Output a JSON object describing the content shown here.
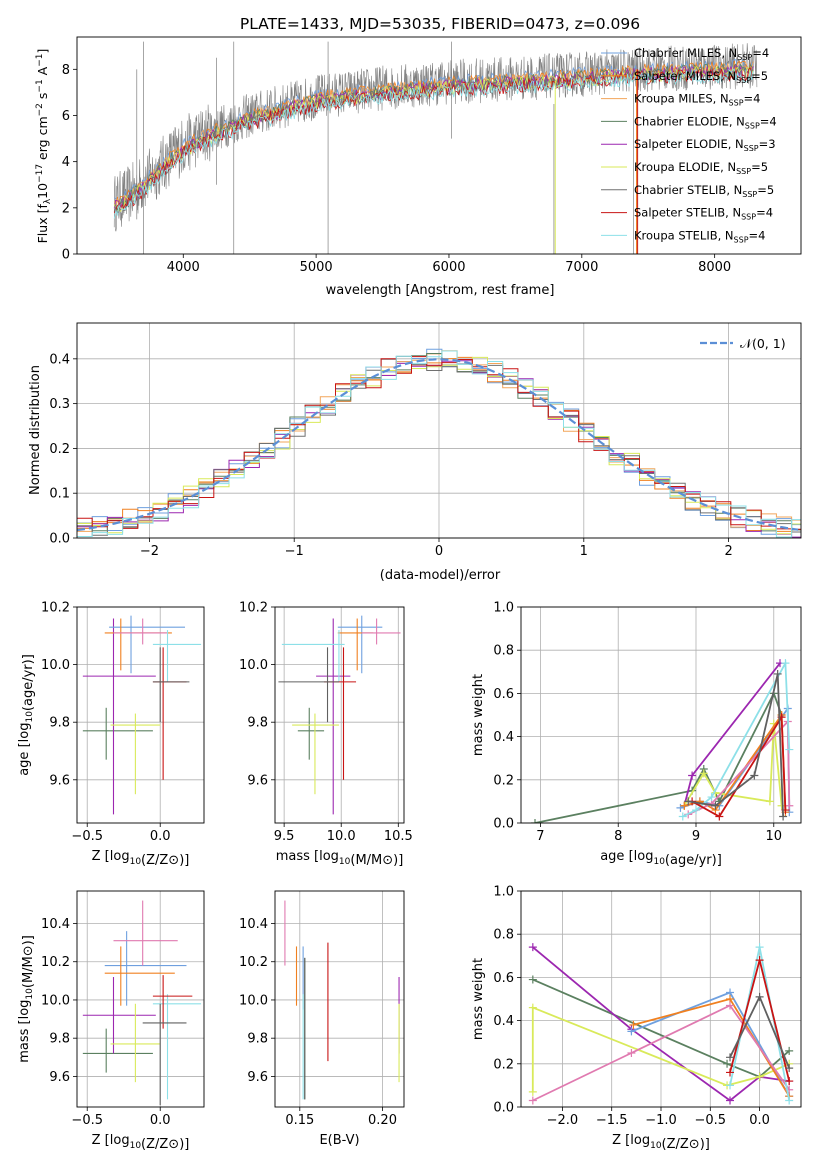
{
  "figure_title": "PLATE=1433, MJD=53035, FIBERID=0473, z=0.096",
  "colors": {
    "models": [
      "#6fa0df",
      "#f08020",
      "#f2a55a",
      "#5b8060",
      "#9c27b0",
      "#d9ea5a",
      "#707070",
      "#c81414",
      "#8de0e8"
    ],
    "age_mass_panels": [
      "#5b8060",
      "#9c27b0",
      "#d9ea5a",
      "#6fa0df",
      "#f08020",
      "#e07ab0",
      "#8de0e8",
      "#c81414",
      "#606060"
    ],
    "gaussian": "#5b8fd6",
    "observed": "#808080"
  },
  "legend_spectrum": [
    {
      "label": "Chabrier MILES, N",
      "sub": "SSP",
      "suffix": "=4"
    },
    {
      "label": "Salpeter MILES, N",
      "sub": "SSP",
      "suffix": "=5"
    },
    {
      "label": "Kroupa MILES, N",
      "sub": "SSP",
      "suffix": "=4"
    },
    {
      "label": "Chabrier ELODIE, N",
      "sub": "SSP",
      "suffix": "=4"
    },
    {
      "label": "Salpeter ELODIE, N",
      "sub": "SSP",
      "suffix": "=3"
    },
    {
      "label": "Kroupa ELODIE, N",
      "sub": "SSP",
      "suffix": "=5"
    },
    {
      "label": "Chabrier STELIB, N",
      "sub": "SSP",
      "suffix": "=5"
    },
    {
      "label": "Salpeter STELIB, N",
      "sub": "SSP",
      "suffix": "=4"
    },
    {
      "label": "Kroupa STELIB, N",
      "sub": "SSP",
      "suffix": "=4"
    }
  ],
  "legend_residual": {
    "label": "𝒩(0, 1)"
  },
  "chart_data": [
    {
      "id": "spectrum",
      "type": "line",
      "xlabel": "wavelength [Angstrom, rest frame]",
      "ylabel_parts": [
        "Flux [f",
        "λ",
        "10",
        "−17",
        " erg cm",
        "−2",
        " s",
        "−1",
        " A",
        "−1",
        "]"
      ],
      "xlim": [
        3200,
        8650
      ],
      "ylim": [
        0,
        9.4
      ],
      "xticks": [
        4000,
        5000,
        6000,
        7000,
        8000
      ],
      "yticks": [
        0,
        2,
        4,
        6,
        8
      ],
      "continuum": [
        [
          3480,
          2.2
        ],
        [
          3600,
          2.6
        ],
        [
          3700,
          3.1
        ],
        [
          3800,
          3.6
        ],
        [
          3900,
          4.2
        ],
        [
          4000,
          4.7
        ],
        [
          4200,
          5.3
        ],
        [
          4500,
          6.0
        ],
        [
          5000,
          6.8
        ],
        [
          5500,
          7.2
        ],
        [
          6000,
          7.45
        ],
        [
          6500,
          7.6
        ],
        [
          7000,
          7.8
        ],
        [
          7500,
          8.0
        ],
        [
          8000,
          8.1
        ],
        [
          8300,
          8.15
        ]
      ]
    },
    {
      "id": "residuals",
      "type": "line",
      "xlabel": "(data-model)/error",
      "ylabel": "Normed distribution",
      "xlim": [
        -2.5,
        2.5
      ],
      "ylim": [
        0,
        0.48
      ],
      "xticks": [
        -2,
        -1,
        0,
        1,
        2
      ],
      "yticks": [
        0.0,
        0.1,
        0.2,
        0.3,
        0.4
      ],
      "gaussian": {
        "mu": 0,
        "sigma": 1
      }
    },
    {
      "id": "age_vs_Z",
      "type": "scatter",
      "xlabel": "Z [log10(Z/Z⊙)]",
      "ylabel": "age  [log10(age/yr)]",
      "xlim": [
        -0.57,
        0.3
      ],
      "ylim": [
        9.45,
        10.2
      ],
      "xticks": [
        -0.5,
        0.0
      ],
      "yticks": [
        9.6,
        9.8,
        10.0,
        10.2
      ],
      "points": [
        {
          "x": -0.37,
          "y": 9.77,
          "xlo": -0.53,
          "xhi": -0.05,
          "ylo": 9.67,
          "yhi": 9.85
        },
        {
          "x": -0.32,
          "y": 9.96,
          "xlo": -0.53,
          "xhi": -0.03,
          "ylo": 9.48,
          "yhi": 10.16
        },
        {
          "x": -0.17,
          "y": 9.79,
          "xlo": -0.34,
          "xhi": 0.0,
          "ylo": 9.55,
          "yhi": 9.83
        },
        {
          "x": -0.2,
          "y": 10.13,
          "xlo": -0.35,
          "xhi": 0.17,
          "ylo": 9.97,
          "yhi": 10.17
        },
        {
          "x": -0.27,
          "y": 10.11,
          "xlo": -0.38,
          "xhi": 0.08,
          "ylo": 9.98,
          "yhi": 10.16
        },
        {
          "x": -0.12,
          "y": 10.11,
          "xlo": -0.32,
          "xhi": 0.05,
          "ylo": 10.07,
          "yhi": 10.16
        },
        {
          "x": 0.05,
          "y": 10.07,
          "xlo": -0.05,
          "xhi": 0.28,
          "ylo": 9.94,
          "yhi": 10.12
        },
        {
          "x": 0.02,
          "y": 9.94,
          "xlo": -0.05,
          "xhi": 0.18,
          "ylo": 9.6,
          "yhi": 10.06
        },
        {
          "x": 0.0,
          "y": 9.94,
          "xlo": -0.05,
          "xhi": 0.2,
          "ylo": 9.8,
          "yhi": 10.06
        }
      ]
    },
    {
      "id": "age_vs_mass",
      "type": "scatter",
      "xlabel": "mass [log10(M/M⊙)]",
      "xlim": [
        9.42,
        10.55
      ],
      "ylim": [
        9.45,
        10.2
      ],
      "xticks": [
        9.5,
        10.0,
        10.5
      ],
      "yticks": [
        9.6,
        9.8,
        10.0,
        10.2
      ],
      "points": [
        {
          "x": 9.72,
          "y": 9.77,
          "xlo": 9.62,
          "xhi": 9.85,
          "ylo": 9.67,
          "yhi": 9.85
        },
        {
          "x": 9.93,
          "y": 9.96,
          "xlo": 9.78,
          "xhi": 10.08,
          "ylo": 9.48,
          "yhi": 10.16
        },
        {
          "x": 9.77,
          "y": 9.79,
          "xlo": 9.57,
          "xhi": 9.98,
          "ylo": 9.55,
          "yhi": 9.83
        },
        {
          "x": 10.18,
          "y": 10.13,
          "xlo": 9.97,
          "xhi": 10.36,
          "ylo": 9.97,
          "yhi": 10.17
        },
        {
          "x": 10.14,
          "y": 10.11,
          "xlo": 9.97,
          "xhi": 10.28,
          "ylo": 9.98,
          "yhi": 10.16
        },
        {
          "x": 10.31,
          "y": 10.11,
          "xlo": 10.18,
          "xhi": 10.52,
          "ylo": 10.07,
          "yhi": 10.16
        },
        {
          "x": 9.98,
          "y": 10.07,
          "xlo": 9.48,
          "xhi": 10.03,
          "ylo": 9.94,
          "yhi": 10.12
        },
        {
          "x": 10.02,
          "y": 9.94,
          "xlo": 9.85,
          "xhi": 10.13,
          "ylo": 9.6,
          "yhi": 10.06
        },
        {
          "x": 9.88,
          "y": 9.94,
          "xlo": 9.45,
          "xhi": 9.98,
          "ylo": 9.8,
          "yhi": 10.06
        }
      ]
    },
    {
      "id": "weight_vs_age",
      "type": "line",
      "xlabel": "age  [log10(age/yr)]",
      "ylabel": "mass weight",
      "xlim": [
        6.75,
        10.35
      ],
      "ylim": [
        0,
        1.0
      ],
      "xticks": [
        7,
        8,
        9,
        10
      ],
      "yticks": [
        0.0,
        0.2,
        0.4,
        0.6,
        0.8,
        1.0
      ],
      "series": [
        {
          "x": [
            6.93,
            8.95,
            9.1,
            9.3,
            10.0,
            10.1
          ],
          "y": [
            0.0,
            0.15,
            0.25,
            0.1,
            0.6,
            0.5
          ]
        },
        {
          "x": [
            8.85,
            8.95,
            10.08
          ],
          "y": [
            0.08,
            0.22,
            0.74
          ]
        },
        {
          "x": [
            8.85,
            9.1,
            9.25,
            9.95,
            10.0,
            10.1
          ],
          "y": [
            0.08,
            0.23,
            0.14,
            0.1,
            0.46,
            0.08
          ]
        },
        {
          "x": [
            8.8,
            9.05,
            9.3,
            10.18,
            10.2
          ],
          "y": [
            0.07,
            0.1,
            0.08,
            0.53,
            0.05
          ]
        },
        {
          "x": [
            8.85,
            9.05,
            9.25,
            10.1,
            10.15
          ],
          "y": [
            0.08,
            0.1,
            0.06,
            0.5,
            0.05
          ]
        },
        {
          "x": [
            8.9,
            9.2,
            10.18,
            10.2
          ],
          "y": [
            0.04,
            0.09,
            0.47,
            0.08
          ]
        },
        {
          "x": [
            8.83,
            9.0,
            9.2,
            10.15,
            10.2
          ],
          "y": [
            0.03,
            0.06,
            0.12,
            0.74,
            0.34
          ]
        },
        {
          "x": [
            8.95,
            9.3,
            10.1,
            10.15
          ],
          "y": [
            0.1,
            0.03,
            0.49,
            0.06
          ]
        },
        {
          "x": [
            8.9,
            9.25,
            9.75,
            10.05,
            10.12
          ],
          "y": [
            0.1,
            0.08,
            0.22,
            0.69,
            0.03
          ]
        }
      ]
    },
    {
      "id": "mass_vs_Z",
      "type": "scatter",
      "xlabel": "Z [log10(Z/Z⊙)]",
      "ylabel": "mass [log10(M/M⊙)]",
      "xlim": [
        -0.57,
        0.3
      ],
      "ylim": [
        9.44,
        10.57
      ],
      "xticks": [
        -0.5,
        0.0
      ],
      "yticks": [
        9.6,
        9.8,
        10.0,
        10.2,
        10.4
      ],
      "points": [
        {
          "x": -0.37,
          "y": 9.72,
          "xlo": -0.53,
          "xhi": -0.05,
          "ylo": 9.62,
          "yhi": 9.85
        },
        {
          "x": -0.32,
          "y": 9.92,
          "xlo": -0.53,
          "xhi": -0.03,
          "ylo": 9.72,
          "yhi": 10.12
        },
        {
          "x": -0.17,
          "y": 9.77,
          "xlo": -0.34,
          "xhi": 0.0,
          "ylo": 9.57,
          "yhi": 9.98
        },
        {
          "x": -0.23,
          "y": 10.18,
          "xlo": -0.38,
          "xhi": 0.18,
          "ylo": 9.97,
          "yhi": 10.36
        },
        {
          "x": -0.27,
          "y": 10.14,
          "xlo": -0.38,
          "xhi": 0.1,
          "ylo": 9.97,
          "yhi": 10.28
        },
        {
          "x": -0.12,
          "y": 10.31,
          "xlo": -0.32,
          "xhi": 0.12,
          "ylo": 10.18,
          "yhi": 10.52
        },
        {
          "x": 0.05,
          "y": 9.98,
          "xlo": -0.05,
          "xhi": 0.28,
          "ylo": 9.48,
          "yhi": 10.03
        },
        {
          "x": 0.02,
          "y": 10.02,
          "xlo": -0.05,
          "xhi": 0.22,
          "ylo": 9.85,
          "yhi": 10.13
        },
        {
          "x": 0.0,
          "y": 9.88,
          "xlo": -0.12,
          "xhi": 0.18,
          "ylo": 9.45,
          "yhi": 9.98
        }
      ]
    },
    {
      "id": "mass_vs_ebv",
      "type": "scatter",
      "xlabel": "E(B-V)",
      "xlim": [
        0.135,
        0.213
      ],
      "ylim": [
        9.44,
        10.57
      ],
      "xticks": [
        0.15,
        0.2
      ],
      "yticks": [
        9.6,
        9.8,
        10.0,
        10.2,
        10.4
      ],
      "points": [
        {
          "x": 0.153,
          "y": 9.72,
          "ylo": 9.48,
          "yhi": 10.22
        },
        {
          "x": 0.21,
          "y": 9.92,
          "ylo": 9.72,
          "yhi": 10.12
        },
        {
          "x": 0.21,
          "y": 9.77,
          "ylo": 9.57,
          "yhi": 9.98
        },
        {
          "x": 0.152,
          "y": 10.18,
          "ylo": 9.95,
          "yhi": 10.28
        },
        {
          "x": 0.148,
          "y": 10.14,
          "ylo": 9.97,
          "yhi": 10.28
        },
        {
          "x": 0.141,
          "y": 10.31,
          "ylo": 10.18,
          "yhi": 10.52
        },
        {
          "x": 0.152,
          "y": 9.98,
          "ylo": 9.48,
          "yhi": 10.03
        },
        {
          "x": 0.167,
          "y": 10.02,
          "ylo": 9.68,
          "yhi": 10.3
        },
        {
          "x": 0.153,
          "y": 9.88,
          "ylo": 9.48,
          "yhi": 10.22
        }
      ]
    },
    {
      "id": "weight_vs_Z",
      "type": "line",
      "xlabel": "Z [log10(Z/Z⊙)]",
      "ylabel": "mass weight",
      "xlim": [
        -2.42,
        0.42
      ],
      "ylim": [
        0,
        1.0
      ],
      "xticks": [
        -2.0,
        -1.5,
        -1.0,
        -0.5,
        0.0
      ],
      "yticks": [
        0.0,
        0.2,
        0.4,
        0.6,
        0.8,
        1.0
      ],
      "series": [
        {
          "x": [
            -2.3,
            -0.33,
            0.0,
            0.3
          ],
          "y": [
            0.59,
            0.2,
            0.14,
            0.26
          ]
        },
        {
          "x": [
            -2.3,
            -1.3,
            -0.3,
            0.0,
            0.3
          ],
          "y": [
            0.74,
            0.36,
            0.03,
            0.14,
            0.12
          ]
        },
        {
          "x": [
            -2.3,
            -2.3,
            -0.33,
            0.0,
            0.3
          ],
          "y": [
            0.07,
            0.46,
            0.1,
            0.14,
            0.2
          ]
        },
        {
          "x": [
            -1.3,
            -0.3,
            0.3
          ],
          "y": [
            0.35,
            0.53,
            0.05
          ]
        },
        {
          "x": [
            -1.28,
            -0.3,
            0.3
          ],
          "y": [
            0.38,
            0.5,
            0.05
          ]
        },
        {
          "x": [
            -2.3,
            -1.3,
            -0.3,
            0.3
          ],
          "y": [
            0.03,
            0.25,
            0.47,
            0.08
          ]
        },
        {
          "x": [
            -0.3,
            0.0,
            0.3
          ],
          "y": [
            0.1,
            0.74,
            0.03
          ]
        },
        {
          "x": [
            -0.3,
            0.0,
            0.3
          ],
          "y": [
            0.16,
            0.68,
            0.12
          ]
        },
        {
          "x": [
            -0.3,
            0.0,
            0.3
          ],
          "y": [
            0.23,
            0.51,
            0.18
          ]
        }
      ]
    }
  ]
}
